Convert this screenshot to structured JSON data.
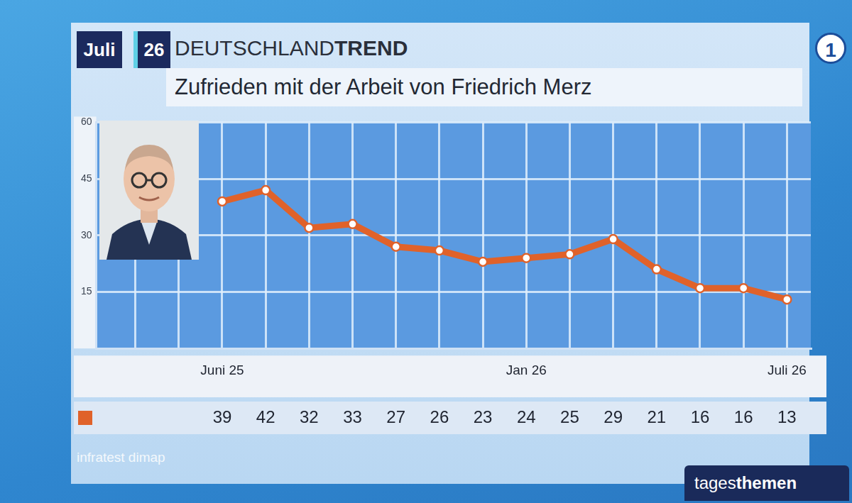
{
  "header": {
    "month": "Juli",
    "year": "26",
    "brand_regular": "DEUTSCHLAND",
    "brand_bold": "TREND",
    "channel_logo": "1"
  },
  "chart_data": {
    "type": "line",
    "title": "Zufrieden mit der Arbeit von Friedrich Merz",
    "categories": [
      "Juni 25",
      null,
      null,
      null,
      null,
      null,
      null,
      "Jan 26",
      null,
      null,
      null,
      null,
      null,
      "Juli 26"
    ],
    "values": [
      39,
      42,
      32,
      33,
      27,
      26,
      23,
      24,
      25,
      29,
      21,
      16,
      16,
      13
    ],
    "color": "#e0622a",
    "marker": "circle",
    "line_style": "solid",
    "ylim": [
      0,
      60
    ],
    "yticks": [
      15,
      30,
      45,
      60
    ],
    "grid": true,
    "data_labels": true
  },
  "source": "infratest dimap",
  "logo": {
    "regular": "tages",
    "bold": "themen"
  }
}
